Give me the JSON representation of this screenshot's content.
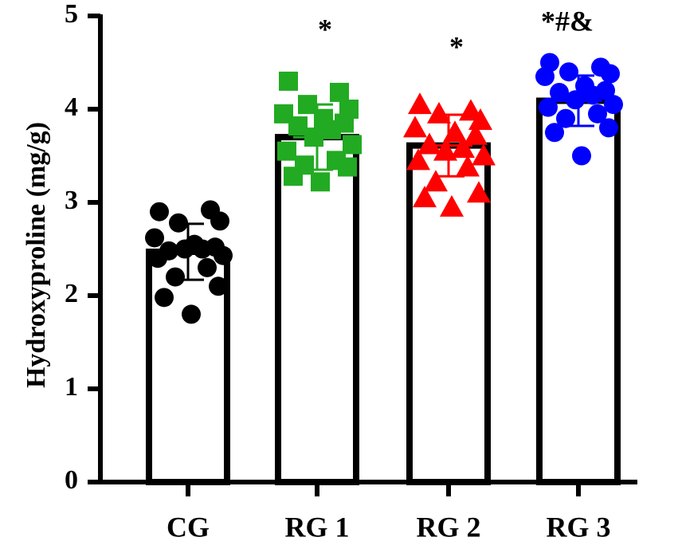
{
  "chart_data": {
    "type": "bar",
    "ylabel": "Hydroxyproline (mg/g)",
    "xlabel": "",
    "ylim": [
      0,
      5
    ],
    "yticks": [
      0,
      1,
      2,
      3,
      4,
      5
    ],
    "grid": false,
    "legend": "none",
    "categories": [
      "CG",
      "RG 1",
      "RG 2",
      "RG 3"
    ],
    "values": [
      2.47,
      3.7,
      3.61,
      4.09
    ],
    "error_sd": [
      0.3,
      0.35,
      0.33,
      0.27
    ],
    "significance": [
      "",
      "*",
      "*",
      "*#&"
    ],
    "series_colors": [
      "#000000",
      "#22aa22",
      "#ff0000",
      "#0000ff"
    ],
    "markers": [
      "circle",
      "square",
      "triangle",
      "circle"
    ],
    "points": [
      [
        2.9,
        2.92,
        2.78,
        2.8,
        2.62,
        2.55,
        2.52,
        2.48,
        2.5,
        2.5,
        2.43,
        2.4,
        2.3,
        2.2,
        2.1,
        1.98,
        1.8
      ],
      [
        4.3,
        4.18,
        4.05,
        4.0,
        3.95,
        3.9,
        3.85,
        3.82,
        3.78,
        3.7,
        3.62,
        3.55,
        3.45,
        3.4,
        3.38,
        3.28,
        3.22
      ],
      [
        4.05,
        3.98,
        3.95,
        3.88,
        3.8,
        3.75,
        3.72,
        3.62,
        3.58,
        3.55,
        3.5,
        3.45,
        3.38,
        3.22,
        3.1,
        3.05,
        2.95
      ],
      [
        4.5,
        4.45,
        4.4,
        4.38,
        4.35,
        4.25,
        4.2,
        4.18,
        4.15,
        4.1,
        4.05,
        4.02,
        3.95,
        3.9,
        3.8,
        3.75,
        3.5
      ]
    ]
  }
}
